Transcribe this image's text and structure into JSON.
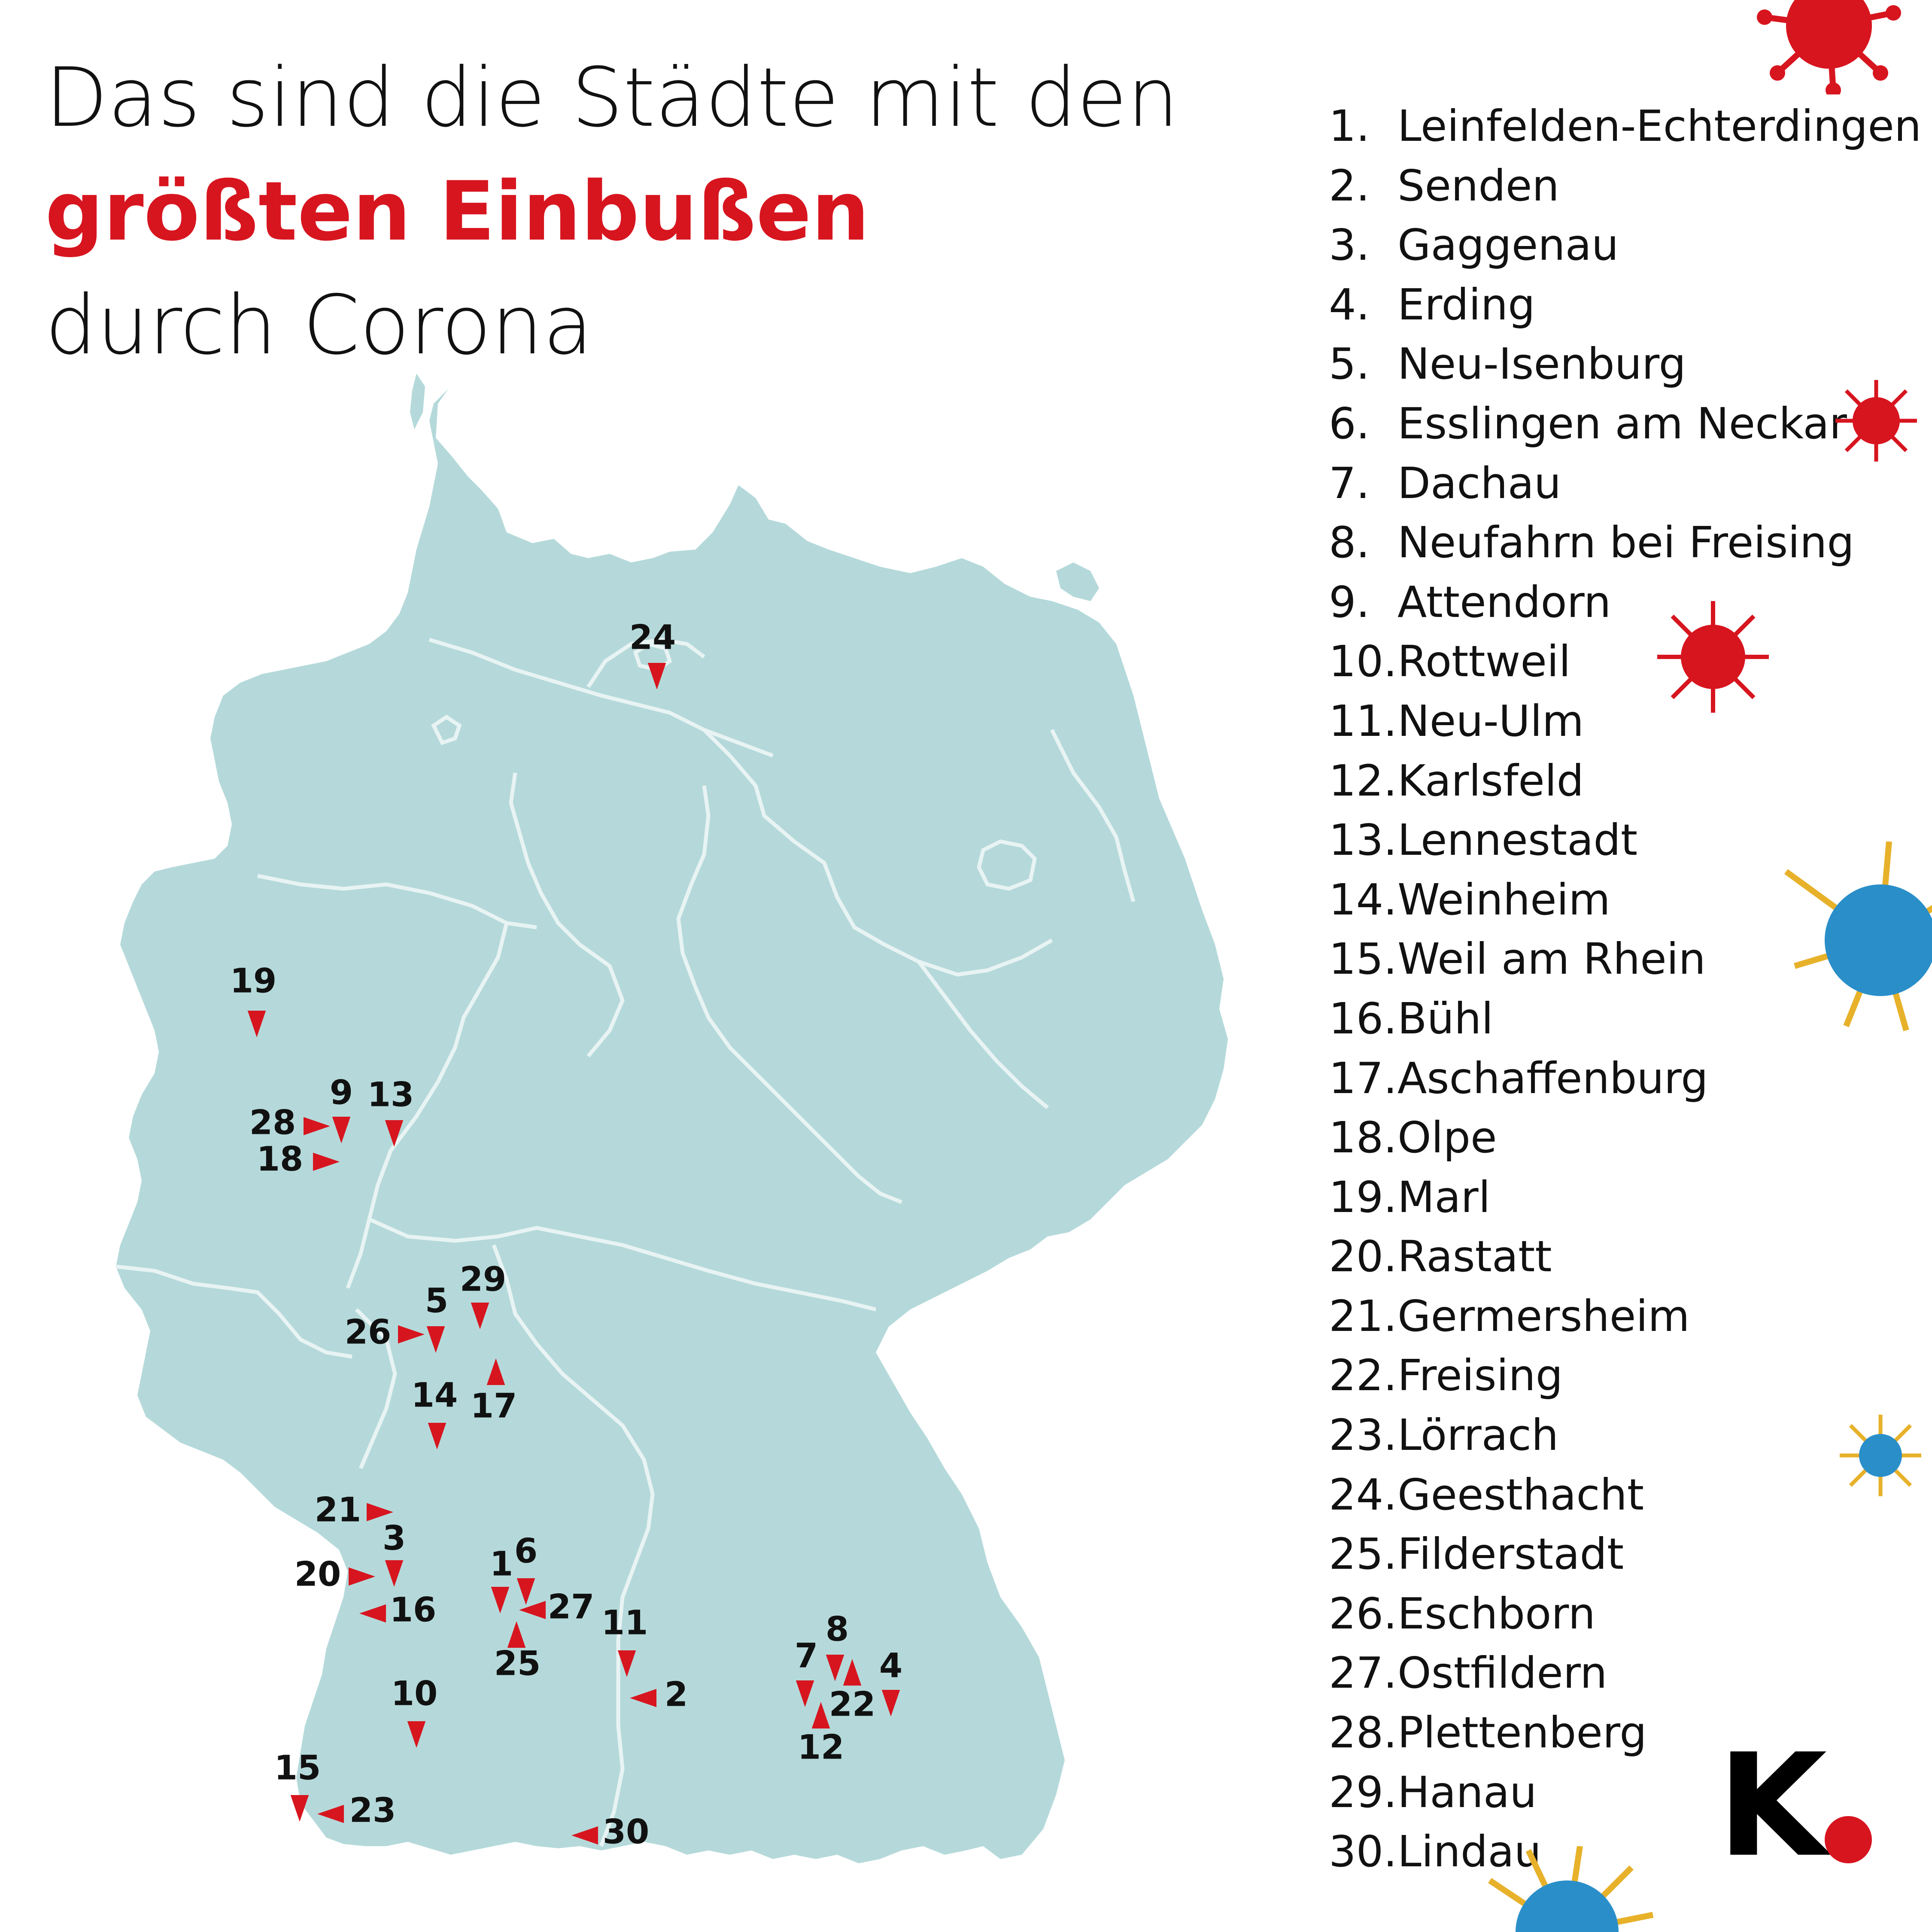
{
  "title": {
    "line1": "Das sind die Städte mit den",
    "line2_highlight": "größten Einbußen",
    "line3": "durch Corona"
  },
  "colors": {
    "map_fill": "#b5d9da",
    "border_line": "#e8f3f3",
    "marker": "#d7151f",
    "highlight_text": "#d7151f",
    "text": "#111111"
  },
  "ranking": [
    {
      "rank": "1.",
      "city": "Leinfelden-Echterdingen"
    },
    {
      "rank": "2.",
      "city": "Senden"
    },
    {
      "rank": "3.",
      "city": "Gaggenau"
    },
    {
      "rank": "4.",
      "city": "Erding"
    },
    {
      "rank": "5.",
      "city": "Neu-Isenburg"
    },
    {
      "rank": "6.",
      "city": "Esslingen am Neckar"
    },
    {
      "rank": "7.",
      "city": "Dachau"
    },
    {
      "rank": "8.",
      "city": "Neufahrn bei Freising"
    },
    {
      "rank": "9.",
      "city": "Attendorn"
    },
    {
      "rank": "10.",
      "city": "Rottweil"
    },
    {
      "rank": "11.",
      "city": "Neu-Ulm"
    },
    {
      "rank": "12.",
      "city": "Karlsfeld"
    },
    {
      "rank": "13.",
      "city": "Lennestadt"
    },
    {
      "rank": "14.",
      "city": "Weinheim"
    },
    {
      "rank": "15.",
      "city": "Weil am Rhein"
    },
    {
      "rank": "16.",
      "city": "Bühl"
    },
    {
      "rank": "17.",
      "city": "Aschaffenburg"
    },
    {
      "rank": "18.",
      "city": "Olpe"
    },
    {
      "rank": "19.",
      "city": "Marl"
    },
    {
      "rank": "20.",
      "city": "Rastatt"
    },
    {
      "rank": "21.",
      "city": "Germersheim"
    },
    {
      "rank": "22.",
      "city": "Freising"
    },
    {
      "rank": "23.",
      "city": "Lörrach"
    },
    {
      "rank": "24.",
      "city": "Geesthacht"
    },
    {
      "rank": "25.",
      "city": "Filderstadt"
    },
    {
      "rank": "26.",
      "city": "Eschborn"
    },
    {
      "rank": "27.",
      "city": "Ostfildern"
    },
    {
      "rank": "28.",
      "city": "Plettenberg"
    },
    {
      "rank": "29.",
      "city": "Hanau"
    },
    {
      "rank": "30.",
      "city": "Lindau"
    }
  ],
  "map_markers": [
    {
      "label": "24",
      "pointer": "down"
    },
    {
      "label": "19",
      "pointer": "down"
    },
    {
      "label": "9",
      "pointer": "down"
    },
    {
      "label": "13",
      "pointer": "down"
    },
    {
      "label": "28",
      "pointer": "right"
    },
    {
      "label": "18",
      "pointer": "right"
    },
    {
      "label": "29",
      "pointer": "down"
    },
    {
      "label": "5",
      "pointer": "down"
    },
    {
      "label": "26",
      "pointer": "right"
    },
    {
      "label": "17",
      "pointer": "up"
    },
    {
      "label": "14",
      "pointer": "down"
    },
    {
      "label": "21",
      "pointer": "right"
    },
    {
      "label": "3",
      "pointer": "down"
    },
    {
      "label": "20",
      "pointer": "right"
    },
    {
      "label": "16",
      "pointer": "left"
    },
    {
      "label": "1",
      "pointer": "down"
    },
    {
      "label": "6",
      "pointer": "down"
    },
    {
      "label": "27",
      "pointer": "left"
    },
    {
      "label": "25",
      "pointer": "up"
    },
    {
      "label": "11",
      "pointer": "down"
    },
    {
      "label": "2",
      "pointer": "left"
    },
    {
      "label": "10",
      "pointer": "down"
    },
    {
      "label": "15",
      "pointer": "down"
    },
    {
      "label": "23",
      "pointer": "left"
    },
    {
      "label": "30",
      "pointer": "left"
    },
    {
      "label": "8",
      "pointer": "down"
    },
    {
      "label": "7",
      "pointer": "down"
    },
    {
      "label": "4",
      "pointer": "down"
    },
    {
      "label": "22",
      "pointer": "up"
    },
    {
      "label": "12",
      "pointer": "up"
    }
  ],
  "logo": {
    "letter": "K",
    "dot_color": "#d7151f"
  },
  "icons": [
    "virus-icon-red",
    "virus-icon-blue"
  ]
}
